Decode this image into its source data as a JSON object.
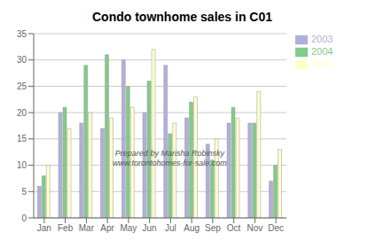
{
  "chart_data": {
    "type": "bar",
    "title": "Condo townhome sales in C01",
    "categories": [
      "Jan",
      "Feb",
      "Mar",
      "Apr",
      "May",
      "Jun",
      "Jul",
      "Aug",
      "Sep",
      "Oct",
      "Nov",
      "Dec"
    ],
    "series": [
      {
        "name": "2003",
        "color": "#b0b0dd",
        "values": [
          6,
          20,
          18,
          17,
          30,
          20,
          29,
          19,
          14,
          18,
          18,
          7
        ]
      },
      {
        "name": "2004",
        "color": "#80cc88",
        "values": [
          8,
          21,
          29,
          31,
          25,
          26,
          16,
          22,
          11,
          21,
          18,
          10
        ]
      },
      {
        "name": "2005",
        "color": "#ffffcc",
        "values": [
          10,
          17,
          20,
          19,
          21,
          32,
          18,
          23,
          15,
          19,
          24,
          13
        ]
      }
    ],
    "ylim": [
      0,
      35
    ],
    "yticks": [
      0,
      5,
      10,
      15,
      20,
      25,
      30,
      35
    ],
    "grid": true,
    "legend": "right",
    "annotations": [
      "Prepared by Marisha Robinsky",
      "www.torontohomes-for-sale.com"
    ]
  }
}
